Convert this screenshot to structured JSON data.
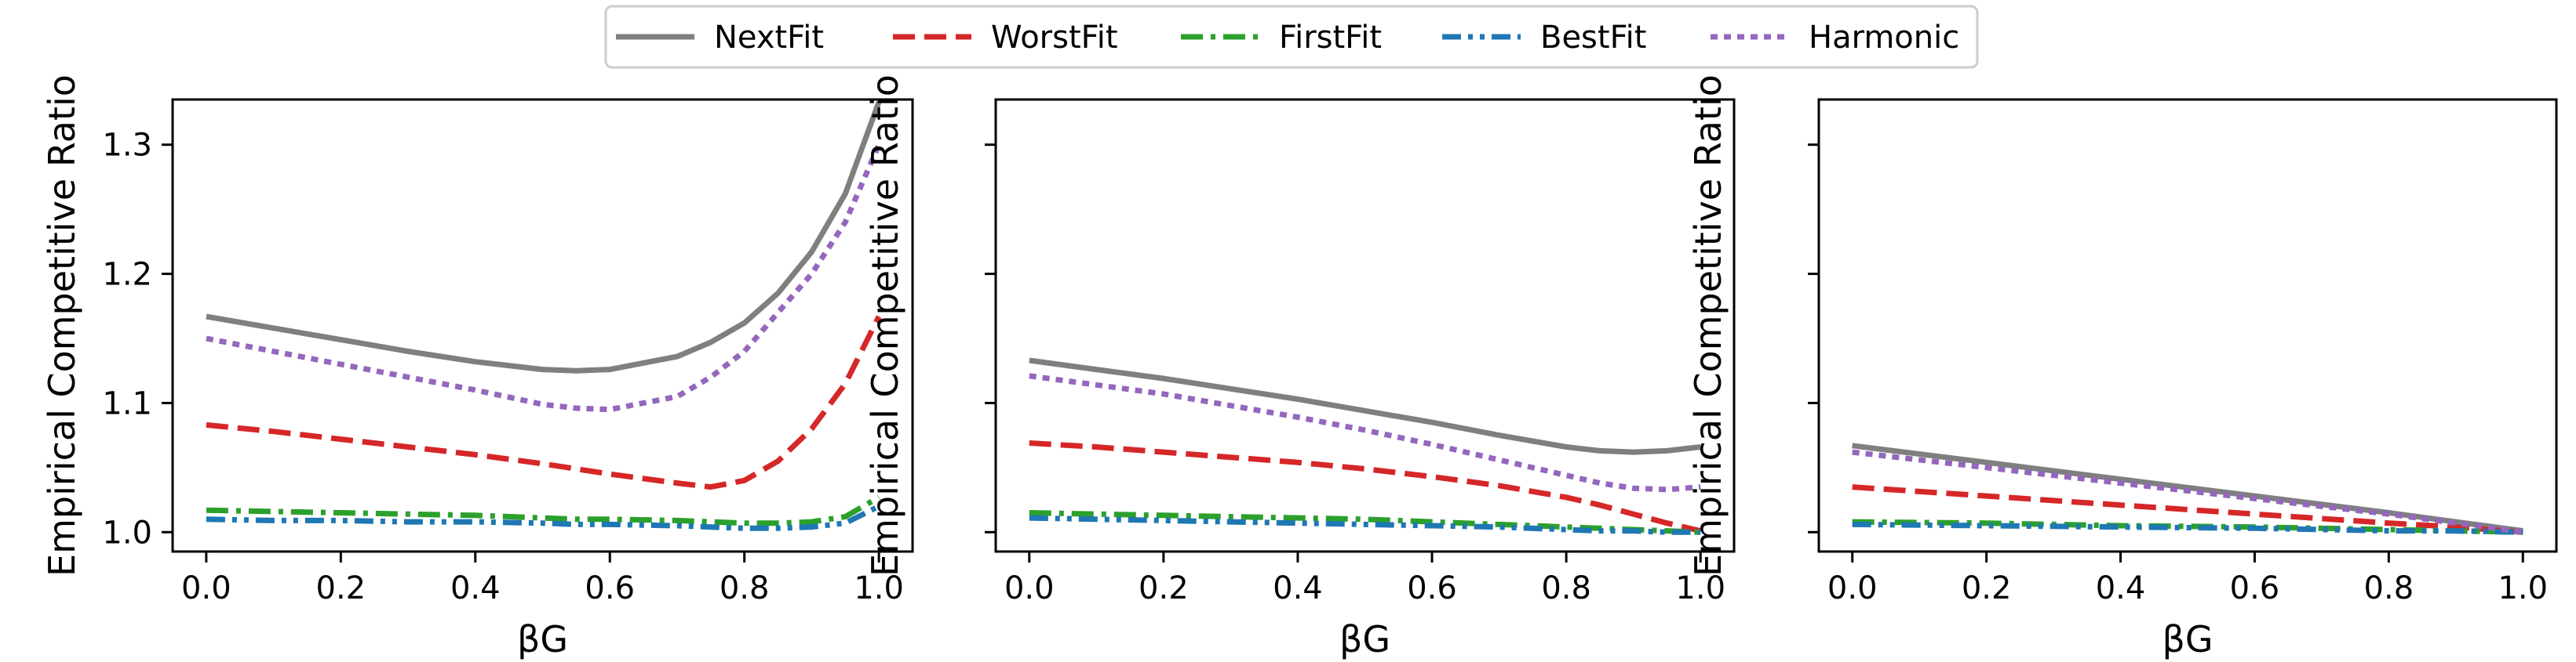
{
  "legend": {
    "placement": "top-center",
    "entries": [
      {
        "name": "NextFit",
        "color": "#7f7f7f",
        "dash": "solid"
      },
      {
        "name": "WorstFit",
        "color": "#d62728",
        "dash": "dashed"
      },
      {
        "name": "FirstFit",
        "color": "#2ca02c",
        "dash": "dashdot"
      },
      {
        "name": "BestFit",
        "color": "#1f77b4",
        "dash": "dashdotdot"
      },
      {
        "name": "Harmonic",
        "color": "#9467bd",
        "dash": "dotted"
      }
    ]
  },
  "chart_data": [
    {
      "type": "line",
      "xlabel": "βG",
      "ylabel": "Empirical Competitive Ratio",
      "xlim": [
        -0.05,
        1.05
      ],
      "ylim": [
        0.985,
        1.335
      ],
      "xticks": [
        "0.0",
        "0.2",
        "0.4",
        "0.6",
        "0.8",
        "1.0"
      ],
      "yticks": [
        "1.0",
        "1.1",
        "1.2",
        "1.3"
      ],
      "show_ytick_labels": true,
      "grid": false,
      "x": [
        0.0,
        0.1,
        0.2,
        0.3,
        0.4,
        0.5,
        0.55,
        0.6,
        0.7,
        0.75,
        0.8,
        0.85,
        0.9,
        0.95,
        1.0
      ],
      "series": [
        {
          "name": "NextFit",
          "values": [
            1.167,
            1.158,
            1.149,
            1.14,
            1.132,
            1.126,
            1.125,
            1.126,
            1.136,
            1.147,
            1.162,
            1.185,
            1.217,
            1.262,
            1.333
          ]
        },
        {
          "name": "WorstFit",
          "values": [
            1.083,
            1.078,
            1.072,
            1.066,
            1.06,
            1.053,
            1.049,
            1.045,
            1.038,
            1.035,
            1.04,
            1.055,
            1.08,
            1.115,
            1.167
          ]
        },
        {
          "name": "FirstFit",
          "values": [
            1.017,
            1.016,
            1.015,
            1.014,
            1.013,
            1.011,
            1.01,
            1.01,
            1.009,
            1.008,
            1.007,
            1.007,
            1.008,
            1.012,
            1.027
          ]
        },
        {
          "name": "BestFit",
          "values": [
            1.01,
            1.009,
            1.009,
            1.008,
            1.008,
            1.007,
            1.006,
            1.006,
            1.005,
            1.004,
            1.003,
            1.003,
            1.004,
            1.007,
            1.02
          ]
        },
        {
          "name": "Harmonic",
          "values": [
            1.15,
            1.14,
            1.13,
            1.12,
            1.11,
            1.099,
            1.096,
            1.095,
            1.105,
            1.12,
            1.14,
            1.17,
            1.2,
            1.24,
            1.3
          ]
        }
      ]
    },
    {
      "type": "line",
      "xlabel": "βG",
      "ylabel": "Empirical Competitive Ratio",
      "xlim": [
        -0.05,
        1.05
      ],
      "ylim": [
        0.985,
        1.335
      ],
      "xticks": [
        "0.0",
        "0.2",
        "0.4",
        "0.6",
        "0.8",
        "1.0"
      ],
      "yticks": [
        "1.0",
        "1.1",
        "1.2",
        "1.3"
      ],
      "show_ytick_labels": false,
      "grid": false,
      "x": [
        0.0,
        0.1,
        0.2,
        0.3,
        0.4,
        0.5,
        0.6,
        0.7,
        0.8,
        0.85,
        0.9,
        0.95,
        1.0
      ],
      "series": [
        {
          "name": "NextFit",
          "values": [
            1.133,
            1.126,
            1.119,
            1.111,
            1.103,
            1.094,
            1.085,
            1.075,
            1.066,
            1.063,
            1.062,
            1.063,
            1.066
          ]
        },
        {
          "name": "WorstFit",
          "values": [
            1.069,
            1.066,
            1.062,
            1.058,
            1.054,
            1.049,
            1.043,
            1.036,
            1.027,
            1.021,
            1.014,
            1.007,
            1.001
          ]
        },
        {
          "name": "FirstFit",
          "values": [
            1.015,
            1.014,
            1.013,
            1.012,
            1.011,
            1.01,
            1.008,
            1.006,
            1.004,
            1.003,
            1.002,
            1.001,
            1.0
          ]
        },
        {
          "name": "BestFit",
          "values": [
            1.011,
            1.01,
            1.009,
            1.008,
            1.007,
            1.006,
            1.005,
            1.004,
            1.002,
            1.001,
            1.001,
            1.0,
            1.0
          ]
        },
        {
          "name": "Harmonic",
          "values": [
            1.121,
            1.114,
            1.107,
            1.098,
            1.089,
            1.079,
            1.068,
            1.056,
            1.044,
            1.038,
            1.034,
            1.033,
            1.035
          ]
        }
      ]
    },
    {
      "type": "line",
      "xlabel": "βG",
      "ylabel": "Empirical Competitive Ratio",
      "xlim": [
        -0.05,
        1.05
      ],
      "ylim": [
        0.985,
        1.335
      ],
      "xticks": [
        "0.0",
        "0.2",
        "0.4",
        "0.6",
        "0.8",
        "1.0"
      ],
      "yticks": [
        "1.0",
        "1.1",
        "1.2",
        "1.3"
      ],
      "show_ytick_labels": false,
      "grid": false,
      "x": [
        0.0,
        0.2,
        0.4,
        0.6,
        0.8,
        0.9,
        1.0
      ],
      "series": [
        {
          "name": "NextFit",
          "values": [
            1.067,
            1.054,
            1.041,
            1.028,
            1.015,
            1.008,
            1.001
          ]
        },
        {
          "name": "WorstFit",
          "values": [
            1.035,
            1.028,
            1.021,
            1.014,
            1.007,
            1.004,
            1.0
          ]
        },
        {
          "name": "FirstFit",
          "values": [
            1.008,
            1.007,
            1.005,
            1.004,
            1.002,
            1.001,
            1.0
          ]
        },
        {
          "name": "BestFit",
          "values": [
            1.006,
            1.005,
            1.004,
            1.003,
            1.001,
            1.001,
            1.0
          ]
        },
        {
          "name": "Harmonic",
          "values": [
            1.062,
            1.05,
            1.038,
            1.026,
            1.014,
            1.007,
            1.0
          ]
        }
      ]
    }
  ]
}
